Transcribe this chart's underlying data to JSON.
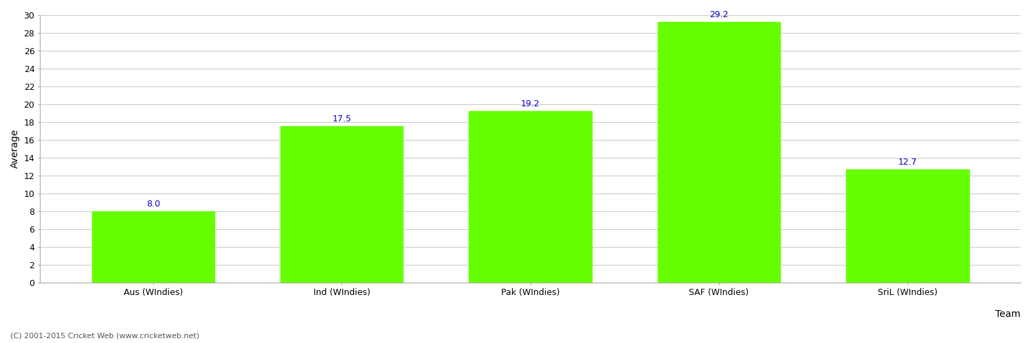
{
  "categories": [
    "Aus (WIndies)",
    "Ind (WIndies)",
    "Pak (WIndies)",
    "SAF (WIndies)",
    "SriL (WIndies)"
  ],
  "values": [
    8.0,
    17.5,
    19.2,
    29.2,
    12.7
  ],
  "bar_color": "#66ff00",
  "bar_edge_color": "#66ff00",
  "label_color": "#0000cc",
  "xlabel": "Team",
  "ylabel": "Average",
  "ylim": [
    0,
    30
  ],
  "yticks": [
    0,
    2,
    4,
    6,
    8,
    10,
    12,
    14,
    16,
    18,
    20,
    22,
    24,
    26,
    28,
    30
  ],
  "grid_color": "#cccccc",
  "background_color": "#ffffff",
  "label_fontsize": 9,
  "axis_label_fontsize": 10,
  "tick_fontsize": 9,
  "footer_text": "(C) 2001-2015 Cricket Web (www.cricketweb.net)"
}
